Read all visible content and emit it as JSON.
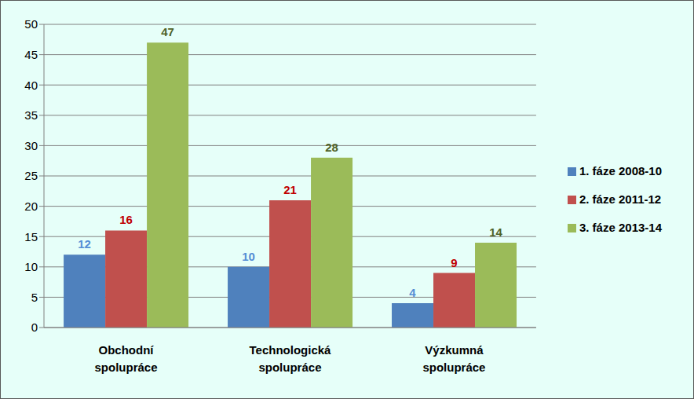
{
  "chart_data": {
    "type": "bar",
    "categories": [
      "Obchodní spolupráce",
      "Technologická spolupráce",
      "Výzkumná spolupráce"
    ],
    "series": [
      {
        "name": "1. fáze 2008-10",
        "color": "#4f81bd",
        "values": [
          12,
          10,
          4
        ]
      },
      {
        "name": "2. fáze 2011-12",
        "color": "#c0504d",
        "values": [
          16,
          21,
          9
        ]
      },
      {
        "name": "3. fáze 2013-14",
        "color": "#9bbb59",
        "values": [
          47,
          28,
          14
        ]
      }
    ],
    "ylim": [
      0,
      50
    ],
    "yticks": [
      0,
      5,
      10,
      15,
      20,
      25,
      30,
      35,
      40,
      45,
      50
    ],
    "grid": true,
    "legend": "right",
    "data_labels": true
  }
}
